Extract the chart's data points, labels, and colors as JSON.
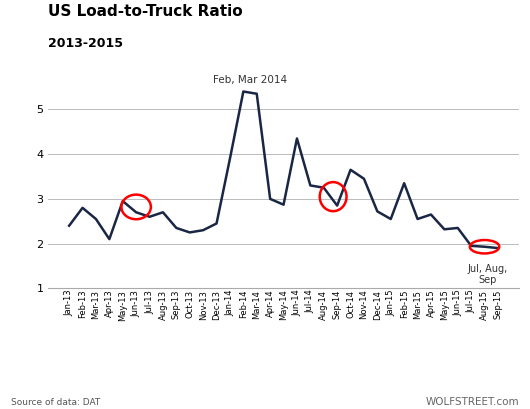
{
  "title": "US Load-to-Truck Ratio",
  "subtitle": "2013-2015",
  "source_text": "Source of data: DAT",
  "watermark": "WOLFSTREET.com",
  "line_color": "#1a2744",
  "line_width": 1.8,
  "background_color": "#ffffff",
  "ylim": [
    1,
    5.8
  ],
  "yticks": [
    1,
    2,
    3,
    4,
    5
  ],
  "annotation1_text": "Feb, Mar 2014",
  "annotation2_text": "Jul, Aug,\nSep",
  "labels": [
    "Jan-13",
    "Feb-13",
    "Mar-13",
    "Apr-13",
    "May-13",
    "Jun-13",
    "Jul-13",
    "Aug-13",
    "Sep-13",
    "Oct-13",
    "Nov-13",
    "Dec-13",
    "Jan-14",
    "Feb-14",
    "Mar-14",
    "Apr-14",
    "May-14",
    "Jun-14",
    "Jul-14",
    "Aug-14",
    "Sep-14",
    "Oct-14",
    "Nov-14",
    "Dec-14",
    "Jan-15",
    "Feb-15",
    "Mar-15",
    "Apr-15",
    "May-15",
    "Jun-15",
    "Jul-15",
    "Aug-15",
    "Sep-15"
  ],
  "values": [
    2.4,
    2.8,
    2.55,
    2.1,
    2.95,
    2.7,
    2.6,
    2.7,
    2.35,
    2.25,
    2.3,
    2.45,
    3.9,
    5.4,
    5.35,
    3.0,
    2.87,
    4.35,
    3.3,
    3.25,
    2.85,
    3.65,
    3.45,
    2.72,
    2.55,
    3.35,
    2.55,
    2.65,
    2.32,
    2.35,
    1.95,
    1.93,
    1.9
  ],
  "circle_color": "red",
  "circle_lw": 1.8
}
